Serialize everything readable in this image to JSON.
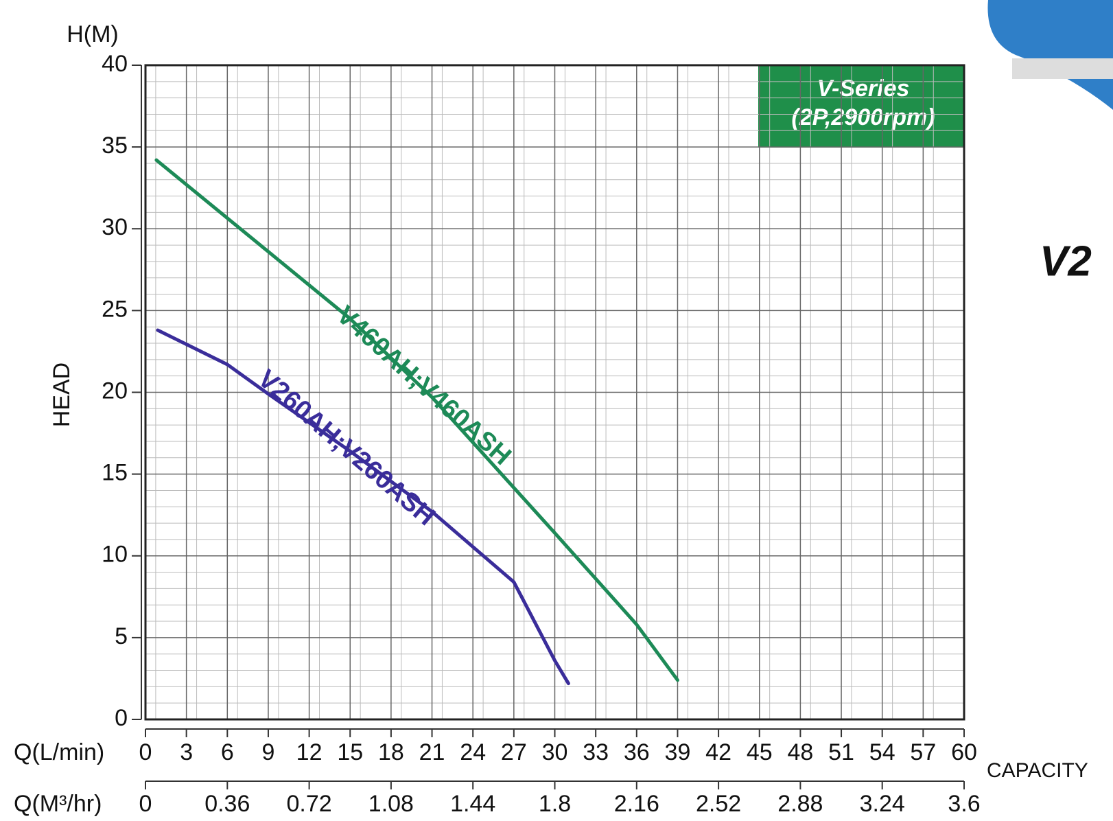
{
  "chart_data": {
    "type": "line",
    "y_label_top": "H(M)",
    "y_label": "HEAD",
    "x_label": "Q(L/min)",
    "x2_label": "Q(M³/hr)",
    "capacity_label": "CAPACITY",
    "annotation": [
      "V-Series",
      "(2P,2900rpm)"
    ],
    "side_text": "V2",
    "xlim": [
      0,
      60
    ],
    "xticks": [
      0,
      3,
      6,
      9,
      12,
      15,
      18,
      21,
      24,
      27,
      30,
      33,
      36,
      39,
      42,
      45,
      48,
      51,
      54,
      57,
      60
    ],
    "x2lim": [
      0,
      3.6
    ],
    "x2ticks": [
      0,
      0.36,
      0.72,
      1.08,
      1.44,
      1.8,
      2.16,
      2.52,
      2.88,
      3.24,
      3.6
    ],
    "ylim": [
      0,
      40
    ],
    "yticks": [
      0,
      5,
      10,
      15,
      20,
      25,
      30,
      35,
      40
    ],
    "grid": true,
    "series": [
      {
        "name": "V460AH;V460ASH",
        "color": "#1d8a57",
        "x": [
          0.8,
          9,
          15,
          21,
          30,
          36,
          39
        ],
        "values": [
          34.2,
          28.6,
          24.5,
          19.7,
          11.4,
          5.8,
          2.4
        ]
      },
      {
        "name": "V260AH;V260ASH",
        "color": "#3a2d9a",
        "x": [
          0.9,
          6,
          9,
          15,
          21,
          27,
          30,
          31
        ],
        "values": [
          23.8,
          21.7,
          19.9,
          16.4,
          12.7,
          8.4,
          3.6,
          2.2
        ]
      }
    ]
  }
}
